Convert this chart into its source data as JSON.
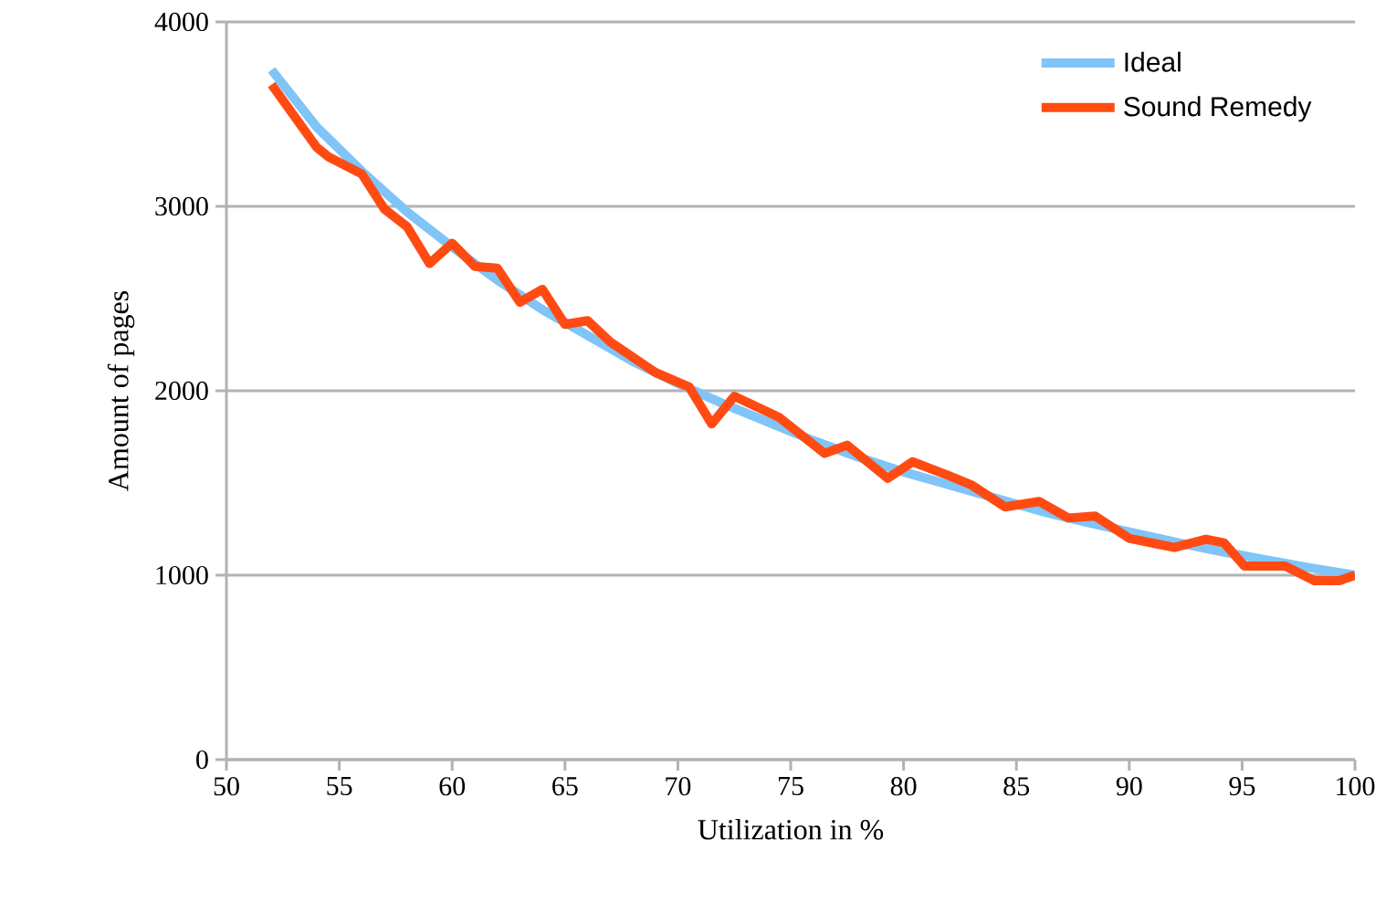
{
  "chart_data": {
    "type": "line",
    "xlabel": "Utilization in %",
    "ylabel": "Amount of pages",
    "xlim": [
      50,
      100
    ],
    "xticks": [
      50,
      55,
      60,
      65,
      70,
      75,
      80,
      85,
      90,
      95,
      100
    ],
    "ylim": [
      0,
      4000
    ],
    "yticks": [
      0,
      1000,
      2000,
      3000,
      4000
    ],
    "grid": "y",
    "legend": "top right",
    "line_style": "solid",
    "series": [
      {
        "name": "Ideal",
        "color": "#80c4f8",
        "x": [
          52,
          54,
          56,
          58,
          60,
          62,
          64,
          66,
          68,
          70,
          72,
          74,
          76,
          78,
          80,
          82,
          84,
          86,
          88,
          90,
          92,
          94,
          96,
          98,
          100
        ],
        "values": [
          3740,
          3430,
          3190,
          2970,
          2780,
          2600,
          2440,
          2300,
          2160,
          2040,
          1930,
          1830,
          1730,
          1640,
          1560,
          1490,
          1420,
          1350,
          1290,
          1235,
          1180,
          1130,
          1085,
          1040,
          1000
        ]
      },
      {
        "name": "Sound Remedy",
        "color": "#ff4b12",
        "x": [
          52,
          54,
          54.5,
          56,
          57,
          58,
          59,
          60,
          61,
          62,
          63,
          64,
          65,
          66,
          67,
          69,
          70.5,
          71.5,
          72.5,
          74.5,
          76.5,
          77.5,
          79.3,
          80.4,
          82,
          83,
          84.5,
          86,
          87.3,
          88.5,
          90,
          92,
          93.4,
          94.2,
          95.1,
          96.9,
          98.2,
          99.3,
          100
        ],
        "values": [
          3660,
          3320,
          3270,
          3175,
          2985,
          2890,
          2690,
          2800,
          2675,
          2665,
          2480,
          2550,
          2360,
          2380,
          2265,
          2100,
          2020,
          1820,
          1970,
          1855,
          1660,
          1705,
          1525,
          1615,
          1540,
          1490,
          1370,
          1400,
          1310,
          1320,
          1200,
          1150,
          1195,
          1175,
          1050,
          1050,
          970,
          970,
          1000
        ]
      }
    ]
  }
}
